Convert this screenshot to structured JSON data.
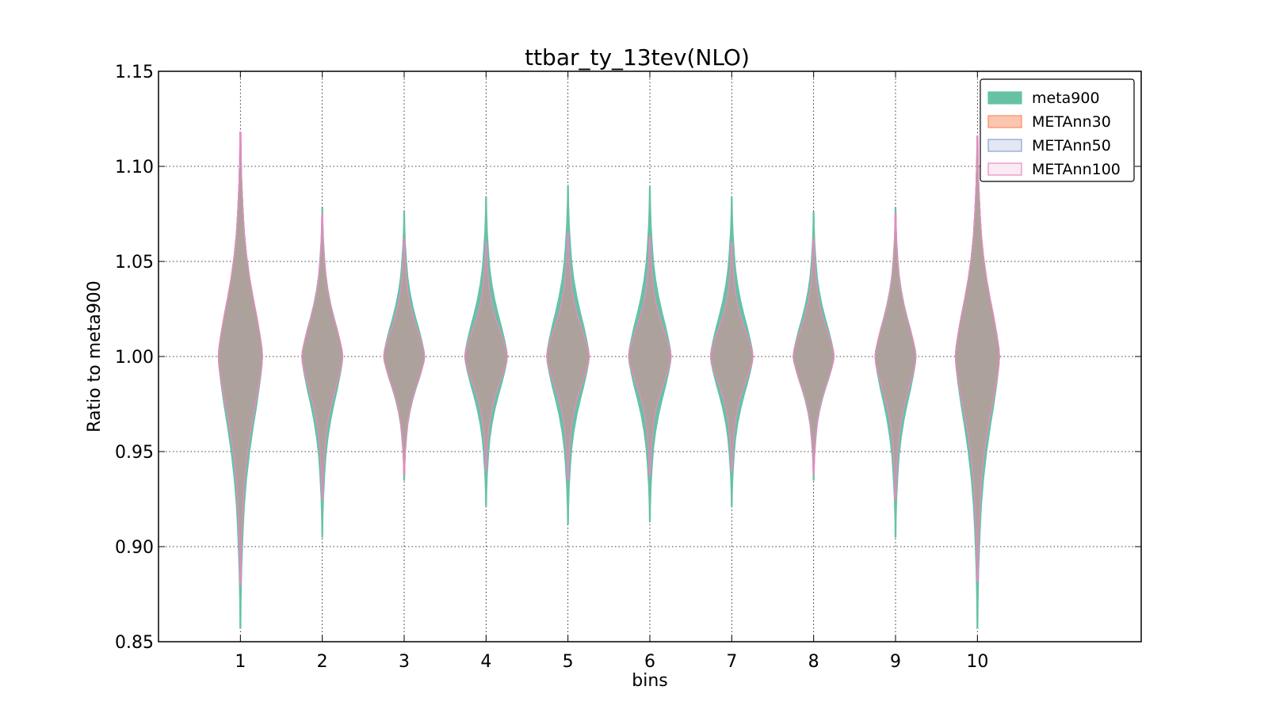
{
  "chart_data": {
    "type": "violin",
    "title": "ttbar_ty_13tev(NLO)",
    "xlabel": "bins",
    "ylabel": "Ratio to meta900",
    "xlim": [
      0,
      12
    ],
    "ylim": [
      0.85,
      1.15
    ],
    "grid": true,
    "grid_style": "dotted",
    "legend_position": "top-right",
    "x_ticks": [
      1,
      2,
      3,
      4,
      5,
      6,
      7,
      8,
      9,
      10
    ],
    "x_tick_labels": [
      "1",
      "2",
      "3",
      "4",
      "5",
      "6",
      "7",
      "8",
      "9",
      "10"
    ],
    "y_ticks": [
      0.85,
      0.9,
      0.95,
      1.0,
      1.05,
      1.1,
      1.15
    ],
    "y_tick_labels": [
      "0.85",
      "0.90",
      "0.95",
      "1.00",
      "1.05",
      "1.10",
      "1.15"
    ],
    "bins": [
      1,
      2,
      3,
      4,
      5,
      6,
      7,
      8,
      9,
      10
    ],
    "center": 1.0,
    "series": [
      {
        "name": "meta900",
        "style": "filled",
        "color": "#66c2a5",
        "fill": "#66c2a5",
        "ranges": [
          [
            0.857,
            1.118
          ],
          [
            0.905,
            1.078
          ],
          [
            0.935,
            1.076
          ],
          [
            0.921,
            1.084
          ],
          [
            0.912,
            1.09
          ],
          [
            0.913,
            1.089
          ],
          [
            0.921,
            1.084
          ],
          [
            0.935,
            1.076
          ],
          [
            0.905,
            1.078
          ],
          [
            0.857,
            1.116
          ]
        ],
        "half_width": [
          0.27,
          0.25,
          0.25,
          0.26,
          0.26,
          0.26,
          0.26,
          0.25,
          0.25,
          0.27
        ]
      },
      {
        "name": "METAnn30",
        "style": "filled",
        "color": "#fc8d62",
        "fill": "#fcc5b0",
        "ranges": [
          [
            0.88,
            1.118
          ],
          [
            0.925,
            1.075
          ],
          [
            0.938,
            1.062
          ],
          [
            0.94,
            1.06
          ],
          [
            0.935,
            1.065
          ],
          [
            0.937,
            1.063
          ],
          [
            0.94,
            1.06
          ],
          [
            0.938,
            1.062
          ],
          [
            0.925,
            1.075
          ],
          [
            0.882,
            1.116
          ]
        ],
        "half_width": [
          0.27,
          0.25,
          0.25,
          0.26,
          0.26,
          0.26,
          0.26,
          0.25,
          0.25,
          0.27
        ]
      },
      {
        "name": "METAnn50",
        "style": "filled",
        "color": "#8da0cb",
        "fill": "#e2e7f3",
        "ranges": [
          [
            0.88,
            1.118
          ],
          [
            0.925,
            1.075
          ],
          [
            0.938,
            1.062
          ],
          [
            0.94,
            1.06
          ],
          [
            0.935,
            1.065
          ],
          [
            0.937,
            1.063
          ],
          [
            0.94,
            1.06
          ],
          [
            0.938,
            1.062
          ],
          [
            0.925,
            1.075
          ],
          [
            0.882,
            1.116
          ]
        ],
        "half_width": [
          0.27,
          0.25,
          0.25,
          0.26,
          0.26,
          0.26,
          0.26,
          0.25,
          0.25,
          0.27
        ]
      },
      {
        "name": "METAnn100",
        "style": "filled",
        "color": "#e78ac3",
        "fill": "#faeaf4",
        "ranges": [
          [
            0.88,
            1.118
          ],
          [
            0.925,
            1.075
          ],
          [
            0.938,
            1.062
          ],
          [
            0.94,
            1.06
          ],
          [
            0.935,
            1.065
          ],
          [
            0.937,
            1.063
          ],
          [
            0.94,
            1.06
          ],
          [
            0.938,
            1.062
          ],
          [
            0.925,
            1.075
          ],
          [
            0.882,
            1.116
          ]
        ],
        "half_width": [
          0.27,
          0.25,
          0.25,
          0.26,
          0.26,
          0.26,
          0.26,
          0.25,
          0.25,
          0.27
        ]
      }
    ],
    "overlap_fill": "#ada29b"
  }
}
